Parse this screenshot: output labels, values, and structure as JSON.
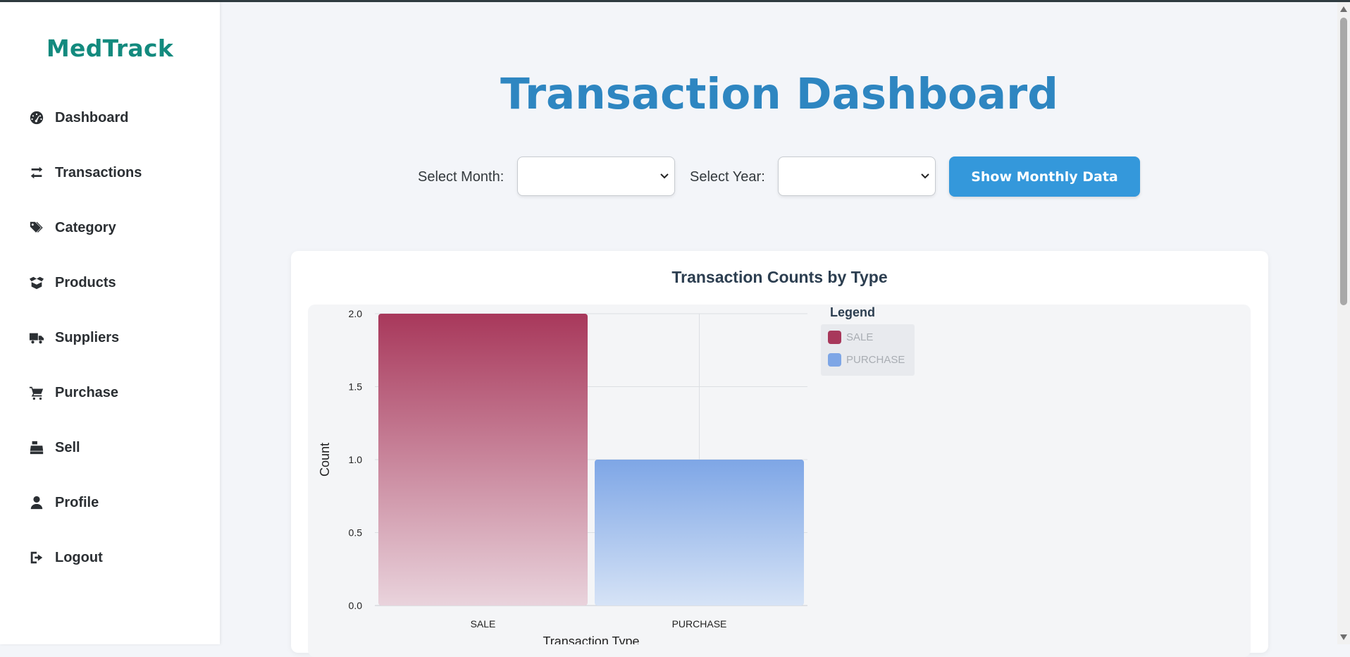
{
  "brand": "MedTrack",
  "sidebar": {
    "items": [
      {
        "label": "Dashboard",
        "icon": "gauge-icon"
      },
      {
        "label": "Transactions",
        "icon": "exchange-icon"
      },
      {
        "label": "Category",
        "icon": "tags-icon"
      },
      {
        "label": "Products",
        "icon": "box-open-icon"
      },
      {
        "label": "Suppliers",
        "icon": "truck-icon"
      },
      {
        "label": "Purchase",
        "icon": "cart-icon"
      },
      {
        "label": "Sell",
        "icon": "cash-register-icon"
      },
      {
        "label": "Profile",
        "icon": "user-icon"
      },
      {
        "label": "Logout",
        "icon": "sign-out-icon"
      }
    ]
  },
  "main": {
    "title": "Transaction Dashboard",
    "filters": {
      "month_label": "Select Month:",
      "month_value": "",
      "year_label": "Select Year:",
      "year_value": "",
      "button_label": "Show Monthly Data"
    }
  },
  "colors": {
    "brand": "#138a7e",
    "title": "#2e86c1",
    "button": "#3498db",
    "sale": "#a8385b",
    "purchase": "#7ea6e6"
  },
  "chart_data": {
    "type": "bar",
    "title": "Transaction Counts by Type",
    "categories": [
      "SALE",
      "PURCHASE"
    ],
    "values": [
      2,
      1
    ],
    "xlabel": "Transaction Type",
    "ylabel": "Count",
    "ylim": [
      0,
      2
    ],
    "yticks": [
      "0.0",
      "0.5",
      "1.0",
      "1.5",
      "2.0"
    ],
    "grid": true,
    "legend": {
      "title": "Legend",
      "placement": "right",
      "entries": [
        "SALE",
        "PURCHASE"
      ]
    }
  }
}
